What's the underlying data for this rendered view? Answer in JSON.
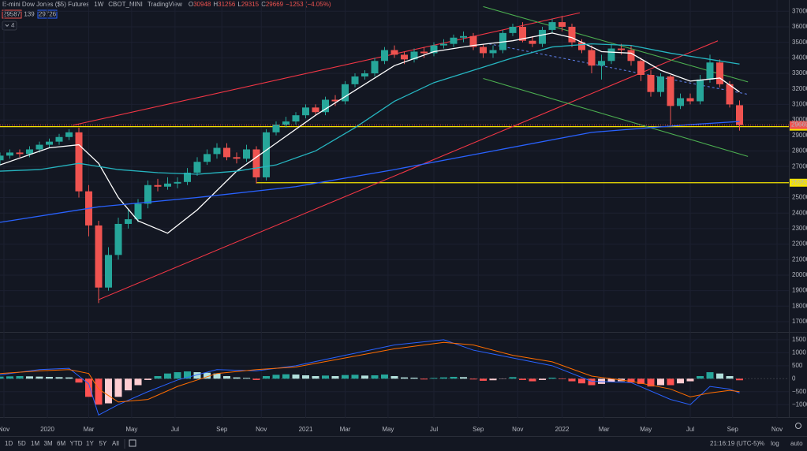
{
  "header": {
    "name": "E-mini Dow Jones ($5) Futures",
    "interval": "1W",
    "exchange": "CBOT_MINI",
    "source": "TradingView",
    "ohlc_keys": [
      "O",
      "H",
      "L",
      "C"
    ],
    "change": "−1253 (−4.05%)",
    "badges": [
      "29587",
      "139",
      "29726"
    ],
    "indicators": "4"
  },
  "chart_data": [
    {
      "type": "candlestick",
      "x": [
        0,
        2,
        4,
        6,
        8,
        10,
        12,
        14,
        16,
        18,
        20,
        22,
        24,
        26,
        28,
        30,
        32,
        34,
        36,
        38,
        40,
        42,
        44,
        46,
        48,
        50,
        52,
        54,
        56,
        58,
        60,
        62,
        64,
        66,
        68,
        70,
        72,
        74,
        76,
        78,
        80,
        82,
        84,
        86,
        88,
        90,
        92,
        94,
        96,
        98,
        100,
        102,
        104,
        106,
        108,
        110,
        112,
        114,
        116,
        118,
        120,
        122,
        124,
        126,
        128,
        130,
        132,
        134,
        136,
        138,
        140,
        142,
        144,
        146,
        148,
        150
      ],
      "open": [
        27400,
        27700,
        27900,
        27800,
        28100,
        28400,
        28600,
        28900,
        29200,
        25400,
        23200,
        19200,
        21300,
        23300,
        23600,
        24600,
        25800,
        25700,
        25900,
        26000,
        26600,
        27300,
        27800,
        28200,
        27600,
        27500,
        28100,
        26300,
        29200,
        29700,
        29900,
        30300,
        30800,
        30500,
        31300,
        31200,
        32300,
        32800,
        33000,
        33800,
        34500,
        34200,
        33900,
        34400,
        34300,
        34800,
        34900,
        35300,
        35400,
        34700,
        34300,
        34500,
        35600,
        36000,
        35100,
        34900,
        35800,
        36300,
        36000,
        35000,
        34500,
        33500,
        33800,
        34600,
        34500,
        33800,
        32900,
        31800,
        32800,
        30900,
        31400,
        31200,
        32600,
        33700,
        32300,
        30948
      ],
      "high": [
        27900,
        28100,
        28100,
        28300,
        28600,
        28800,
        29100,
        29400,
        29500,
        25800,
        23500,
        21800,
        23700,
        24200,
        24900,
        26100,
        26200,
        26300,
        26300,
        26900,
        27600,
        28100,
        28500,
        28500,
        27900,
        28400,
        28300,
        29400,
        29900,
        30200,
        30500,
        31000,
        31000,
        31500,
        31600,
        32500,
        33000,
        33200,
        34000,
        34700,
        34800,
        34400,
        34600,
        34700,
        35000,
        35200,
        35500,
        35700,
        35600,
        34900,
        34800,
        35800,
        36200,
        36300,
        35400,
        36000,
        36500,
        36700,
        36200,
        35200,
        34800,
        34200,
        34900,
        34900,
        34800,
        34000,
        33200,
        33000,
        32900,
        31700,
        31700,
        32900,
        34200,
        33900,
        32500,
        31256
      ],
      "low": [
        27100,
        27500,
        27600,
        27600,
        27900,
        28200,
        28400,
        28700,
        25000,
        22500,
        18200,
        19000,
        21000,
        23000,
        23400,
        24300,
        25400,
        25500,
        25600,
        25800,
        26400,
        27100,
        27500,
        27400,
        27200,
        27300,
        25900,
        26100,
        29000,
        29500,
        29700,
        30100,
        30300,
        30300,
        30900,
        31000,
        32100,
        32600,
        32800,
        33600,
        34000,
        33600,
        33700,
        34000,
        34100,
        34600,
        34700,
        35000,
        34500,
        34000,
        34000,
        34300,
        35400,
        35000,
        34700,
        34700,
        35600,
        35700,
        34700,
        34300,
        33000,
        32600,
        33600,
        34200,
        33500,
        32500,
        31500,
        31500,
        29700,
        30700,
        31000,
        31000,
        32400,
        32100,
        30800,
        29315
      ],
      "close": [
        27700,
        27900,
        27800,
        28100,
        28400,
        28600,
        28900,
        29200,
        25400,
        23200,
        19200,
        21300,
        23300,
        23600,
        24600,
        25800,
        25700,
        25900,
        26000,
        26600,
        27300,
        27800,
        28200,
        27600,
        27500,
        28100,
        26300,
        29200,
        29700,
        29900,
        30300,
        30800,
        30500,
        31300,
        31200,
        32300,
        32800,
        33000,
        33800,
        34500,
        34200,
        33900,
        34400,
        34300,
        34800,
        34900,
        35300,
        35400,
        34700,
        34300,
        34500,
        35600,
        36000,
        35100,
        34900,
        35800,
        36300,
        36000,
        35000,
        34500,
        33500,
        33800,
        34600,
        34500,
        33800,
        32900,
        31800,
        32800,
        30900,
        31400,
        31200,
        32600,
        33700,
        32300,
        31000,
        29669
      ],
      "up_color": "#26a69a",
      "down_color": "#ef5350",
      "xlim": [
        0,
        160
      ],
      "xticks": [
        {
          "value": 0.8,
          "label": "Nov"
        },
        {
          "value": 9.6,
          "label": "2020"
        },
        {
          "value": 18,
          "label": "Mar"
        },
        {
          "value": 26.7,
          "label": "May"
        },
        {
          "value": 35.5,
          "label": "Jul"
        },
        {
          "value": 45,
          "label": "Sep"
        },
        {
          "value": 53,
          "label": "Nov"
        },
        {
          "value": 62,
          "label": "2021"
        },
        {
          "value": 70,
          "label": "Mar"
        },
        {
          "value": 78.7,
          "label": "May"
        },
        {
          "value": 88,
          "label": "Jul"
        },
        {
          "value": 97,
          "label": "Sep"
        },
        {
          "value": 105,
          "label": "Nov"
        },
        {
          "value": 114,
          "label": "2022"
        },
        {
          "value": 122.5,
          "label": "Mar"
        },
        {
          "value": 131,
          "label": "May"
        },
        {
          "value": 140,
          "label": "Jul"
        },
        {
          "value": 148.6,
          "label": "Sep"
        },
        {
          "value": 157.6,
          "label": "Nov"
        }
      ],
      "ylim": [
        16390,
        37320
      ],
      "yticks": [
        17000,
        18000,
        19000,
        20000,
        21000,
        22000,
        23000,
        24000,
        25000,
        26000,
        27000,
        28000,
        29000,
        30000,
        31000,
        32000,
        33000,
        34000,
        35000,
        36000,
        37000
      ],
      "grid": true,
      "lines": [
        {
          "color": "#ffffff",
          "x": [
            0,
            10,
            16,
            20,
            24,
            28,
            34,
            40,
            48,
            56,
            64,
            72,
            80,
            88,
            96,
            104,
            112,
            116,
            122,
            128,
            134,
            140,
            146,
            150
          ],
          "values": [
            27100,
            28200,
            28400,
            27200,
            25000,
            23500,
            22700,
            24200,
            26700,
            28500,
            30300,
            31900,
            33500,
            34400,
            34800,
            35100,
            35600,
            35300,
            34400,
            34300,
            33200,
            32500,
            32700,
            31800
          ]
        },
        {
          "color": "#26b5c0",
          "x": [
            0,
            8,
            16,
            24,
            32,
            40,
            48,
            56,
            64,
            72,
            80,
            88,
            96,
            104,
            112,
            120,
            128,
            136,
            144,
            150
          ],
          "values": [
            26700,
            26800,
            27200,
            26800,
            26600,
            26500,
            26700,
            27100,
            28000,
            29500,
            31200,
            32400,
            33200,
            34000,
            34700,
            34900,
            34800,
            34300,
            33900,
            33600
          ]
        },
        {
          "color": "#2962ff",
          "x": [
            0,
            20,
            40,
            60,
            80,
            100,
            120,
            140,
            150
          ],
          "values": [
            23400,
            24400,
            25000,
            25700,
            26800,
            28000,
            29200,
            29700,
            29900
          ]
        }
      ],
      "trendlines": [
        {
          "color": "#f23645",
          "dash": false,
          "points": [
            [
              14.7,
              29650
            ],
            [
              117.6,
              36900
            ]
          ]
        },
        {
          "color": "#f23645",
          "dash": false,
          "points": [
            [
              20,
              18420
            ],
            [
              145.6,
              35100
            ]
          ]
        },
        {
          "color": "#4caf50",
          "dash": false,
          "points": [
            [
              98,
              37300
            ],
            [
              151.7,
              32450
            ]
          ]
        },
        {
          "color": "#4caf50",
          "dash": false,
          "points": [
            [
              98,
              32670
            ],
            [
              151.7,
              27650
            ]
          ]
        },
        {
          "color": "#5b7be0",
          "dash": true,
          "points": [
            [
              99.2,
              34900
            ],
            [
              151.7,
              31650
            ]
          ]
        }
      ],
      "hlines": [
        {
          "value": 29565,
          "from": 0,
          "color": "#f5e400"
        },
        {
          "value": 25953,
          "from": 52,
          "color": "#f5e400"
        }
      ]
    },
    {
      "type": "bar",
      "x": [
        0,
        2,
        4,
        6,
        8,
        10,
        12,
        14,
        16,
        18,
        20,
        22,
        24,
        26,
        28,
        30,
        32,
        34,
        36,
        38,
        40,
        42,
        44,
        46,
        48,
        50,
        52,
        54,
        56,
        58,
        60,
        62,
        64,
        66,
        68,
        70,
        72,
        74,
        76,
        78,
        80,
        82,
        84,
        86,
        88,
        90,
        92,
        94,
        96,
        98,
        100,
        102,
        104,
        106,
        108,
        110,
        112,
        114,
        116,
        118,
        120,
        122,
        124,
        126,
        128,
        130,
        132,
        134,
        136,
        138,
        140,
        142,
        144,
        146,
        148,
        150
      ],
      "values": [
        80,
        90,
        100,
        90,
        80,
        70,
        60,
        50,
        -150,
        -700,
        -1000,
        -950,
        -700,
        -450,
        -250,
        -50,
        100,
        200,
        250,
        280,
        250,
        230,
        200,
        100,
        50,
        30,
        -50,
        100,
        150,
        170,
        160,
        130,
        100,
        120,
        100,
        140,
        150,
        120,
        130,
        160,
        100,
        50,
        40,
        -30,
        30,
        50,
        70,
        60,
        -30,
        -80,
        -60,
        -10,
        60,
        -50,
        -100,
        -50,
        40,
        -20,
        -100,
        -180,
        -250,
        -200,
        -120,
        -100,
        -150,
        -200,
        -300,
        -250,
        -250,
        -180,
        -100,
        100,
        250,
        200,
        100,
        -60
      ],
      "colors": {
        "pos_up": "#26a69a",
        "pos_down": "#b2dfdb",
        "neg_down": "#ff5252",
        "neg_up": "#ffcdd2"
      },
      "xlim": [
        0,
        160
      ],
      "ylim": [
        -1450,
        1710
      ],
      "yticks": [
        1500,
        1000,
        500,
        0,
        {
          "value": -500,
          "label": "−500"
        },
        {
          "value": -1000,
          "label": "−1000"
        }
      ],
      "lines": [
        {
          "color": "#2962ff",
          "x": [
            0,
            8,
            14,
            18,
            20,
            24,
            30,
            36,
            44,
            52,
            60,
            70,
            80,
            90,
            96,
            104,
            112,
            120,
            128,
            136,
            140,
            144,
            148,
            150
          ],
          "values": [
            150,
            350,
            400,
            -200,
            -1400,
            -1000,
            -500,
            -50,
            350,
            300,
            500,
            900,
            1300,
            1500,
            1100,
            800,
            500,
            -100,
            -150,
            -800,
            -1000,
            -300,
            -400,
            -550
          ]
        },
        {
          "color": "#ff6d00",
          "x": [
            0,
            8,
            14,
            18,
            20,
            24,
            30,
            36,
            44,
            52,
            60,
            70,
            80,
            90,
            96,
            104,
            112,
            120,
            128,
            136,
            140,
            144,
            148,
            150
          ],
          "values": [
            200,
            300,
            350,
            200,
            -400,
            -900,
            -800,
            -300,
            200,
            350,
            450,
            800,
            1150,
            1400,
            1300,
            900,
            650,
            100,
            -100,
            -400,
            -700,
            -550,
            -450,
            -500
          ]
        }
      ]
    }
  ],
  "toolbar": {
    "ranges": [
      "1D",
      "5D",
      "1M",
      "3M",
      "6M",
      "YTD",
      "1Y",
      "5Y",
      "All"
    ],
    "clock": "21:16:19 (UTC-5)",
    "options": [
      "%",
      "log",
      "auto"
    ]
  }
}
